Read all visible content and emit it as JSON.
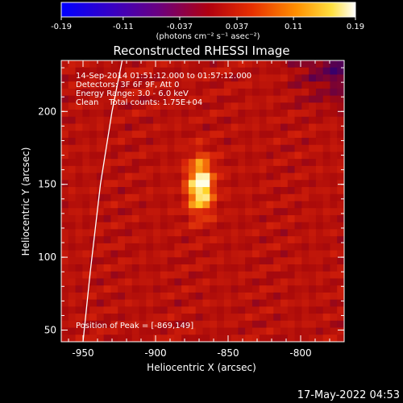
{
  "chart_data": {
    "type": "heatmap",
    "title": "Reconstructed RHESSI Image",
    "xlabel": "Heliocentric X (arcsec)",
    "ylabel": "Heliocentric Y (arcsec)",
    "xlim": [
      -965,
      -770
    ],
    "ylim": [
      42,
      235
    ],
    "x_ticks": [
      -950,
      -900,
      -850,
      -800
    ],
    "x_tick_labels": [
      "-950",
      "-900",
      "-850",
      "-800"
    ],
    "y_ticks": [
      50,
      100,
      150,
      200
    ],
    "y_tick_labels": [
      "50",
      "100",
      "150",
      "200"
    ],
    "colorbar": {
      "min": -0.19,
      "max": 0.19,
      "ticks": [
        -0.19,
        -0.11,
        -0.037,
        0.037,
        0.11,
        0.19
      ],
      "tick_labels": [
        "-0.19",
        "-0.11",
        "-0.037",
        "0.037",
        "0.11",
        "0.19"
      ],
      "unit_label": "(photons cm⁻² s⁻¹ asec⁻²)",
      "colormap": "blue-purple-red-yellow-white"
    },
    "annotations": [
      "14-Sep-2014 01:51:12.000 to 01:57:12.000",
      "Detectors: 3F 6F 9F, Att 0",
      "Energy Range: 3.0 - 6.0 keV",
      "Clean    Total counts: 1.75E+04"
    ],
    "peak_label": "Position of Peak = [-869,149]",
    "peak": {
      "x": -869,
      "y": 149
    },
    "limb_arc": [
      [
        -950,
        42
      ],
      [
        -945,
        90
      ],
      [
        -938,
        150
      ],
      [
        -930,
        200
      ],
      [
        -923,
        235
      ]
    ],
    "colors": {
      "background": "#000000",
      "low": "#0000ff",
      "mid": "#cc1010",
      "high": "#ffff60",
      "peak": "#ffffff"
    }
  },
  "footer": {
    "timestamp": "17-May-2022 04:53"
  }
}
